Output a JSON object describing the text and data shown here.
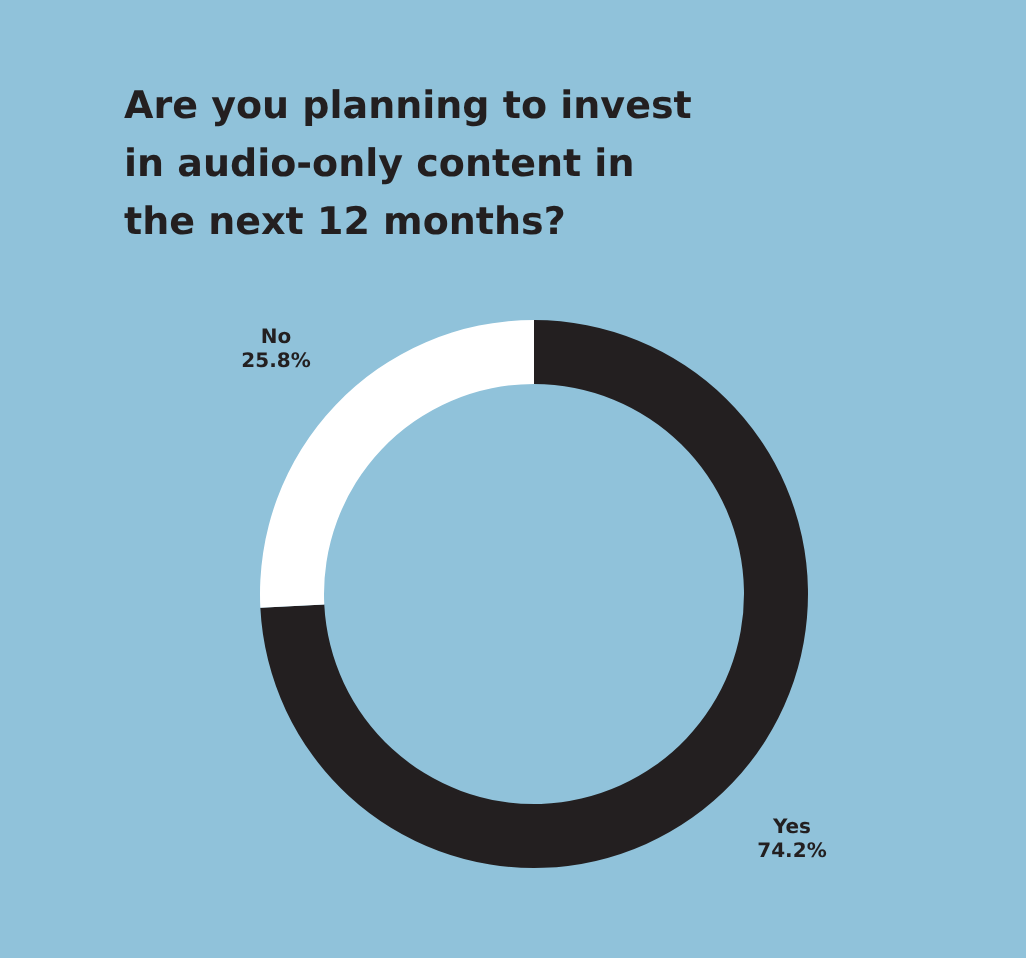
{
  "chart_data": {
    "type": "donut",
    "title": [
      "Are you planning to invest",
      "in audio-only content in",
      "the next 12 months?"
    ],
    "categories": [
      "Yes",
      "No"
    ],
    "values": [
      74.2,
      25.8
    ],
    "colors": [
      "#231f20",
      "#ffffff"
    ],
    "value_labels": [
      "74.2%",
      "25.8%"
    ]
  }
}
